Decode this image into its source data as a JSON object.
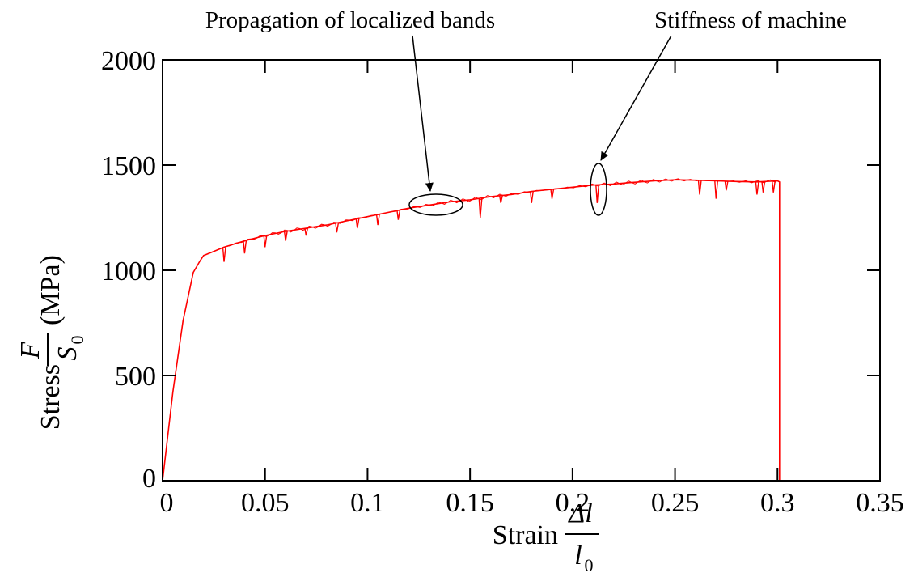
{
  "chart_data": {
    "type": "line",
    "title": "",
    "xlabel": {
      "prefix": "Strain",
      "numerator": "Δl",
      "denominator": "l",
      "denominator_subscript": "0"
    },
    "ylabel": {
      "prefix": "Stress",
      "numerator": "F",
      "denominator": "S",
      "denominator_subscript": "0",
      "suffix": "(MPa)"
    },
    "xlim": [
      0,
      0.35
    ],
    "ylim": [
      0,
      2000
    ],
    "xticks": [
      0,
      0.05,
      0.1,
      0.15,
      0.2,
      0.25,
      0.3,
      0.35
    ],
    "xtick_labels": [
      "0",
      "0.05",
      "0.1",
      "0.15",
      "0.2",
      "0.25",
      "0.3",
      "0.35"
    ],
    "yticks": [
      0,
      500,
      1000,
      1500,
      2000
    ],
    "ytick_labels": [
      "0",
      "500",
      "1000",
      "1500",
      "2000"
    ],
    "grid": false,
    "series": [
      {
        "color": "#ff0000",
        "x": [
          0,
          0.005,
          0.01,
          0.015,
          0.018,
          0.02,
          0.025,
          0.03,
          0.04,
          0.05,
          0.06,
          0.07,
          0.08,
          0.09,
          0.1,
          0.11,
          0.12,
          0.13,
          0.14,
          0.15,
          0.16,
          0.17,
          0.18,
          0.19,
          0.2,
          0.21,
          0.22,
          0.23,
          0.24,
          0.25,
          0.26,
          0.27,
          0.28,
          0.29,
          0.3,
          0.301,
          0.301
        ],
        "y": [
          0,
          420,
          760,
          990,
          1040,
          1070,
          1090,
          1110,
          1140,
          1165,
          1185,
          1200,
          1215,
          1235,
          1255,
          1275,
          1295,
          1310,
          1325,
          1335,
          1350,
          1360,
          1375,
          1385,
          1395,
          1405,
          1410,
          1418,
          1425,
          1430,
          1428,
          1425,
          1422,
          1420,
          1425,
          1420,
          0
        ]
      }
    ],
    "dips": [
      {
        "x": 0.03,
        "y": 1040
      },
      {
        "x": 0.04,
        "y": 1080
      },
      {
        "x": 0.05,
        "y": 1110
      },
      {
        "x": 0.06,
        "y": 1140
      },
      {
        "x": 0.07,
        "y": 1165
      },
      {
        "x": 0.085,
        "y": 1180
      },
      {
        "x": 0.095,
        "y": 1200
      },
      {
        "x": 0.105,
        "y": 1215
      },
      {
        "x": 0.115,
        "y": 1240
      },
      {
        "x": 0.155,
        "y": 1250
      },
      {
        "x": 0.165,
        "y": 1320
      },
      {
        "x": 0.18,
        "y": 1320
      },
      {
        "x": 0.19,
        "y": 1340
      },
      {
        "x": 0.212,
        "y": 1320
      },
      {
        "x": 0.262,
        "y": 1360
      },
      {
        "x": 0.27,
        "y": 1340
      },
      {
        "x": 0.275,
        "y": 1380
      },
      {
        "x": 0.29,
        "y": 1360
      },
      {
        "x": 0.293,
        "y": 1370
      },
      {
        "x": 0.298,
        "y": 1370
      }
    ],
    "annotations": [
      {
        "text": "Propagation of localized bands",
        "arrow_to": {
          "x": 0.131,
          "y": 1320
        }
      },
      {
        "text": "Stiffness of machine",
        "arrow_to": {
          "x": 0.213,
          "y": 1385
        }
      }
    ]
  }
}
